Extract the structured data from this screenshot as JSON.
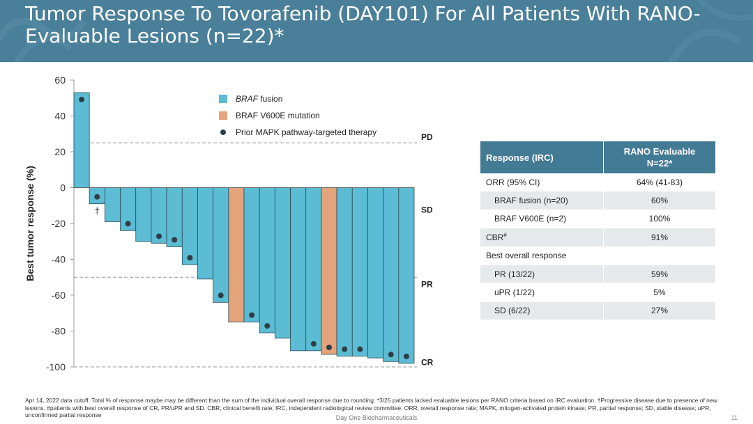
{
  "title": "Tumor Response To Tovorafenib (DAY101) For All Patients With RANO-Evaluable Lesions (n=22)*",
  "colors": {
    "header": "#4a7f99",
    "fusion": "#5bbcd3",
    "v600e": "#e3a37b",
    "dot": "#2f3e46",
    "table_header": "#437a94",
    "table_shade": "#e6e9ec"
  },
  "chart_data": {
    "type": "bar",
    "ylabel": "Best tumor response (%)",
    "ylim": [
      -100,
      60
    ],
    "yticks": [
      60,
      40,
      20,
      0,
      -20,
      -40,
      -60,
      -80,
      -100
    ],
    "grid": false,
    "legend_position": "top-center",
    "legend": [
      {
        "label": "BRAF fusion",
        "italic_prefix": "BRAF",
        "rest": " fusion",
        "color": "#5bbcd3",
        "kind": "bar"
      },
      {
        "label": "BRAF V600E mutation",
        "color": "#e3a37b",
        "kind": "bar"
      },
      {
        "label": "Prior MAPK pathway-targeted therapy",
        "color": "#2f3e46",
        "kind": "dot"
      }
    ],
    "reference_lines": [
      {
        "label": "PD",
        "y": 25
      },
      {
        "label": "SD",
        "y": 0
      },
      {
        "label": "PR",
        "y": -50
      },
      {
        "label": "CR",
        "y": -100
      }
    ],
    "bars": [
      {
        "value": 53,
        "type": "fusion",
        "prior_mapk": true,
        "marker": ""
      },
      {
        "value": -9,
        "type": "fusion",
        "prior_mapk": true,
        "marker": "†"
      },
      {
        "value": -19,
        "type": "fusion",
        "prior_mapk": false,
        "marker": ""
      },
      {
        "value": -24,
        "type": "fusion",
        "prior_mapk": true,
        "marker": ""
      },
      {
        "value": -30,
        "type": "fusion",
        "prior_mapk": false,
        "marker": ""
      },
      {
        "value": -31,
        "type": "fusion",
        "prior_mapk": true,
        "marker": ""
      },
      {
        "value": -33,
        "type": "fusion",
        "prior_mapk": true,
        "marker": ""
      },
      {
        "value": -43,
        "type": "fusion",
        "prior_mapk": true,
        "marker": ""
      },
      {
        "value": -51,
        "type": "fusion",
        "prior_mapk": false,
        "marker": ""
      },
      {
        "value": -64,
        "type": "fusion",
        "prior_mapk": true,
        "marker": ""
      },
      {
        "value": -75,
        "type": "v600e",
        "prior_mapk": false,
        "marker": ""
      },
      {
        "value": -75,
        "type": "fusion",
        "prior_mapk": true,
        "marker": ""
      },
      {
        "value": -81,
        "type": "fusion",
        "prior_mapk": true,
        "marker": ""
      },
      {
        "value": -84,
        "type": "fusion",
        "prior_mapk": false,
        "marker": ""
      },
      {
        "value": -91,
        "type": "fusion",
        "prior_mapk": false,
        "marker": ""
      },
      {
        "value": -91,
        "type": "fusion",
        "prior_mapk": true,
        "marker": ""
      },
      {
        "value": -93,
        "type": "v600e",
        "prior_mapk": true,
        "marker": ""
      },
      {
        "value": -94,
        "type": "fusion",
        "prior_mapk": true,
        "marker": ""
      },
      {
        "value": -94,
        "type": "fusion",
        "prior_mapk": true,
        "marker": ""
      },
      {
        "value": -95,
        "type": "fusion",
        "prior_mapk": false,
        "marker": ""
      },
      {
        "value": -97,
        "type": "fusion",
        "prior_mapk": true,
        "marker": ""
      },
      {
        "value": -98,
        "type": "fusion",
        "prior_mapk": true,
        "marker": ""
      }
    ]
  },
  "table": {
    "header": {
      "col1": "Response (IRC)",
      "col2_line1": "RANO Evaluable",
      "col2_line2": "N=22*"
    },
    "rows": [
      {
        "label": "ORR (95% CI)",
        "value": "64% (41-83)",
        "indent": false
      },
      {
        "label": "BRAF fusion (n=20)",
        "value": "60%",
        "indent": true
      },
      {
        "label": "BRAF V600E (n=2)",
        "value": "100%",
        "indent": true
      },
      {
        "label": "CBR",
        "sup": "#",
        "value": "91%",
        "indent": false
      },
      {
        "label": "Best overall response",
        "value": "",
        "indent": false
      },
      {
        "label": "PR (13/22)",
        "value": "59%",
        "indent": true
      },
      {
        "label": "uPR (1/22)",
        "value": "5%",
        "indent": true
      },
      {
        "label": "SD (6/22)",
        "value": "27%",
        "indent": true
      }
    ]
  },
  "footnote": "Apr 14, 2022 data cutoff. Total % of response maybe may be different than the sum of the individual overall response due to rounding. *3/25 patients lacked evaluable lesions per RANO criteria based on IRC evaluation. †Progressive disease due to presence of new lesions. #patients with best overall response of CR, PR/uPR and SD. CBR, clinical benefit rate; IRC, independent radiological review committee; ORR, overall response rate; MAPK, mitogen-activated protein kinase; PR, partial response; SD, stable disease; uPR, unconfirmed partial response",
  "footer": "Day One Biopharmaceuticals",
  "page_number": "11"
}
